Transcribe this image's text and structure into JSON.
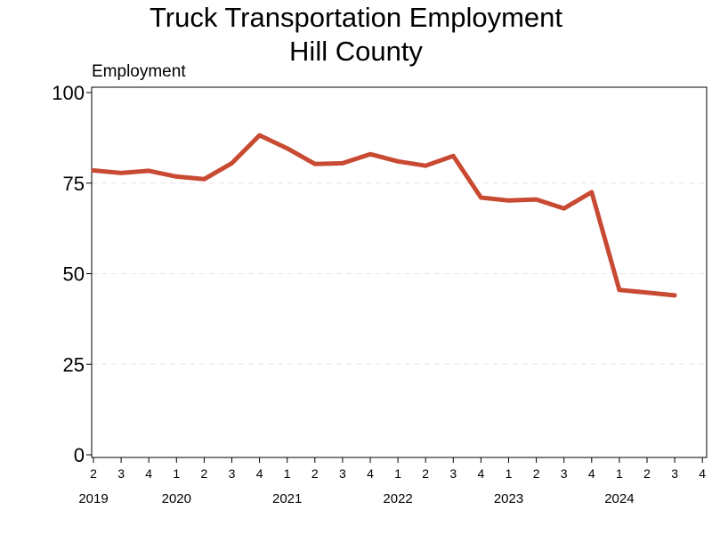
{
  "chart_data": {
    "type": "line",
    "title_lines": [
      "Truck Transportation Employment",
      "Hill County"
    ],
    "ylabel": "Employment",
    "xlabel": "",
    "ylim": [
      0,
      100
    ],
    "yticks": [
      0,
      25,
      50,
      75,
      100
    ],
    "grid": "horizontal-dashed",
    "line_color": "#c94a32",
    "quarter_tick_labels": [
      "2",
      "3",
      "4",
      "1",
      "2",
      "3",
      "4",
      "1",
      "2",
      "3",
      "4",
      "1",
      "2",
      "3",
      "4",
      "1",
      "2",
      "3",
      "4",
      "1",
      "2",
      "3",
      "4"
    ],
    "year_labels": [
      {
        "label": "2019",
        "quarter_index": 0
      },
      {
        "label": "2020",
        "quarter_index": 3
      },
      {
        "label": "2021",
        "quarter_index": 7
      },
      {
        "label": "2022",
        "quarter_index": 11
      },
      {
        "label": "2023",
        "quarter_index": 15
      },
      {
        "label": "2024",
        "quarter_index": 19
      }
    ],
    "series": [
      {
        "values": [
          78.5,
          77.8,
          78.4,
          76.8,
          76.1,
          80.5,
          88.2,
          84.6,
          80.3,
          80.5,
          83.0,
          81.0,
          79.8,
          82.5,
          71.0,
          70.2,
          70.5,
          68.0,
          72.5,
          45.5,
          44.8,
          44.0
        ]
      }
    ]
  }
}
